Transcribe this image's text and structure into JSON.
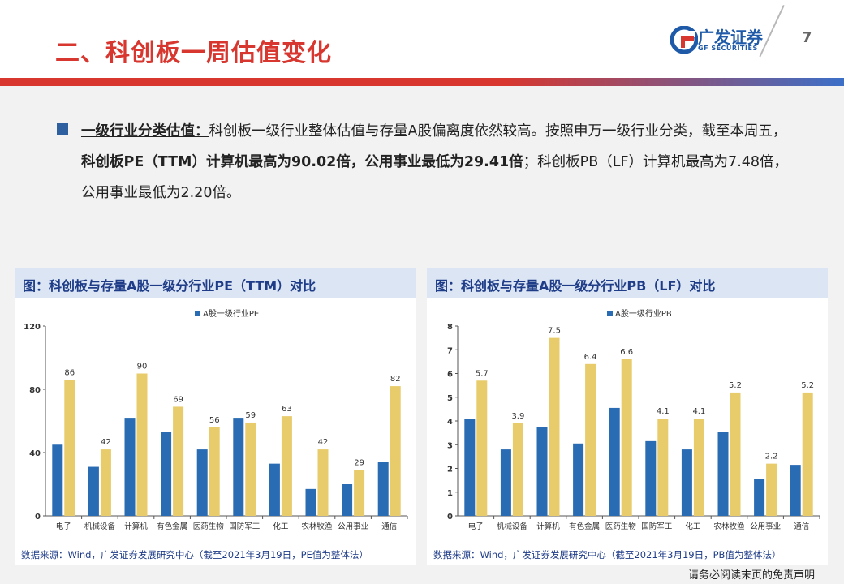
{
  "header": {
    "title": "二、科创板一周估值变化",
    "logo_cn": "广发证券",
    "logo_en": "GF SECURITIES",
    "page_number": "7"
  },
  "colors": {
    "accent_red": "#d7372f",
    "brand_blue": "#1e5aa8",
    "series_blue": "#2a6cb3",
    "series_gold": "#e8cb6a"
  },
  "body": {
    "lead": "一级行业分类估值：",
    "text1": "科创板一级行业整体估值与存量A股偏离度依然较高。按照申万一级行业分类，截至本周五，",
    "bold": "科创板PE（TTM）计算机最高为90.02倍，公用事业最低为29.41倍",
    "text2": "；科创板PB（LF）计算机最高为7.48倍，公用事业最低为2.20倍。"
  },
  "panels": {
    "left_title": "图：科创板与存量A股一级分行业PE（TTM）对比",
    "left_source": "数据来源：Wind，广发证券发展研究中心（截至2021年3月19日，PE值为整体法）",
    "right_title": "图：科创板与存量A股一级分行业PB（LF）对比",
    "right_source": "数据来源：Wind，广发证券发展研究中心（截至2021年3月19日，PB值为整体法）"
  },
  "footer": {
    "disclaimer": "请务必阅读末页的免责声明"
  },
  "chart_data": [
    {
      "type": "bar",
      "categories": [
        "电子",
        "机械设备",
        "计算机",
        "有色金属",
        "医药生物",
        "国防军工",
        "化工",
        "农林牧渔",
        "公用事业",
        "通信"
      ],
      "series": [
        {
          "name": "A股一级行业PE",
          "values": [
            45,
            31,
            62,
            53,
            42,
            62,
            33,
            17,
            20,
            34
          ]
        },
        {
          "values": [
            86,
            42,
            90,
            69,
            56,
            59,
            63,
            42,
            29,
            82
          ]
        }
      ],
      "data_labels": [
        "86",
        "42",
        "90",
        "69",
        "56",
        "59",
        "63",
        "42",
        "29",
        "82"
      ],
      "yticks": [
        "0",
        "40",
        "80",
        "120"
      ],
      "ylim": [
        0,
        120
      ],
      "legend": "top-center"
    },
    {
      "type": "bar",
      "categories": [
        "电子",
        "机械设备",
        "计算机",
        "有色金属",
        "医药生物",
        "国防军工",
        "化工",
        "农林牧渔",
        "公用事业",
        "通信"
      ],
      "series": [
        {
          "name": "A股一级行业PB",
          "values": [
            4.1,
            2.8,
            3.75,
            3.05,
            4.55,
            3.15,
            2.8,
            3.55,
            1.55,
            2.15
          ]
        },
        {
          "values": [
            5.7,
            3.9,
            7.5,
            6.4,
            6.6,
            4.1,
            4.1,
            5.2,
            2.2,
            5.2
          ]
        }
      ],
      "data_labels": [
        "5.7",
        "3.9",
        "7.5",
        "6.4",
        "6.6",
        "4.1",
        "4.1",
        "5.2",
        "2.2",
        "5.2"
      ],
      "yticks": [
        "0",
        "1",
        "2",
        "3",
        "4",
        "5",
        "6",
        "7",
        "8"
      ],
      "ylim": [
        0,
        8
      ],
      "legend": "top-center"
    }
  ]
}
